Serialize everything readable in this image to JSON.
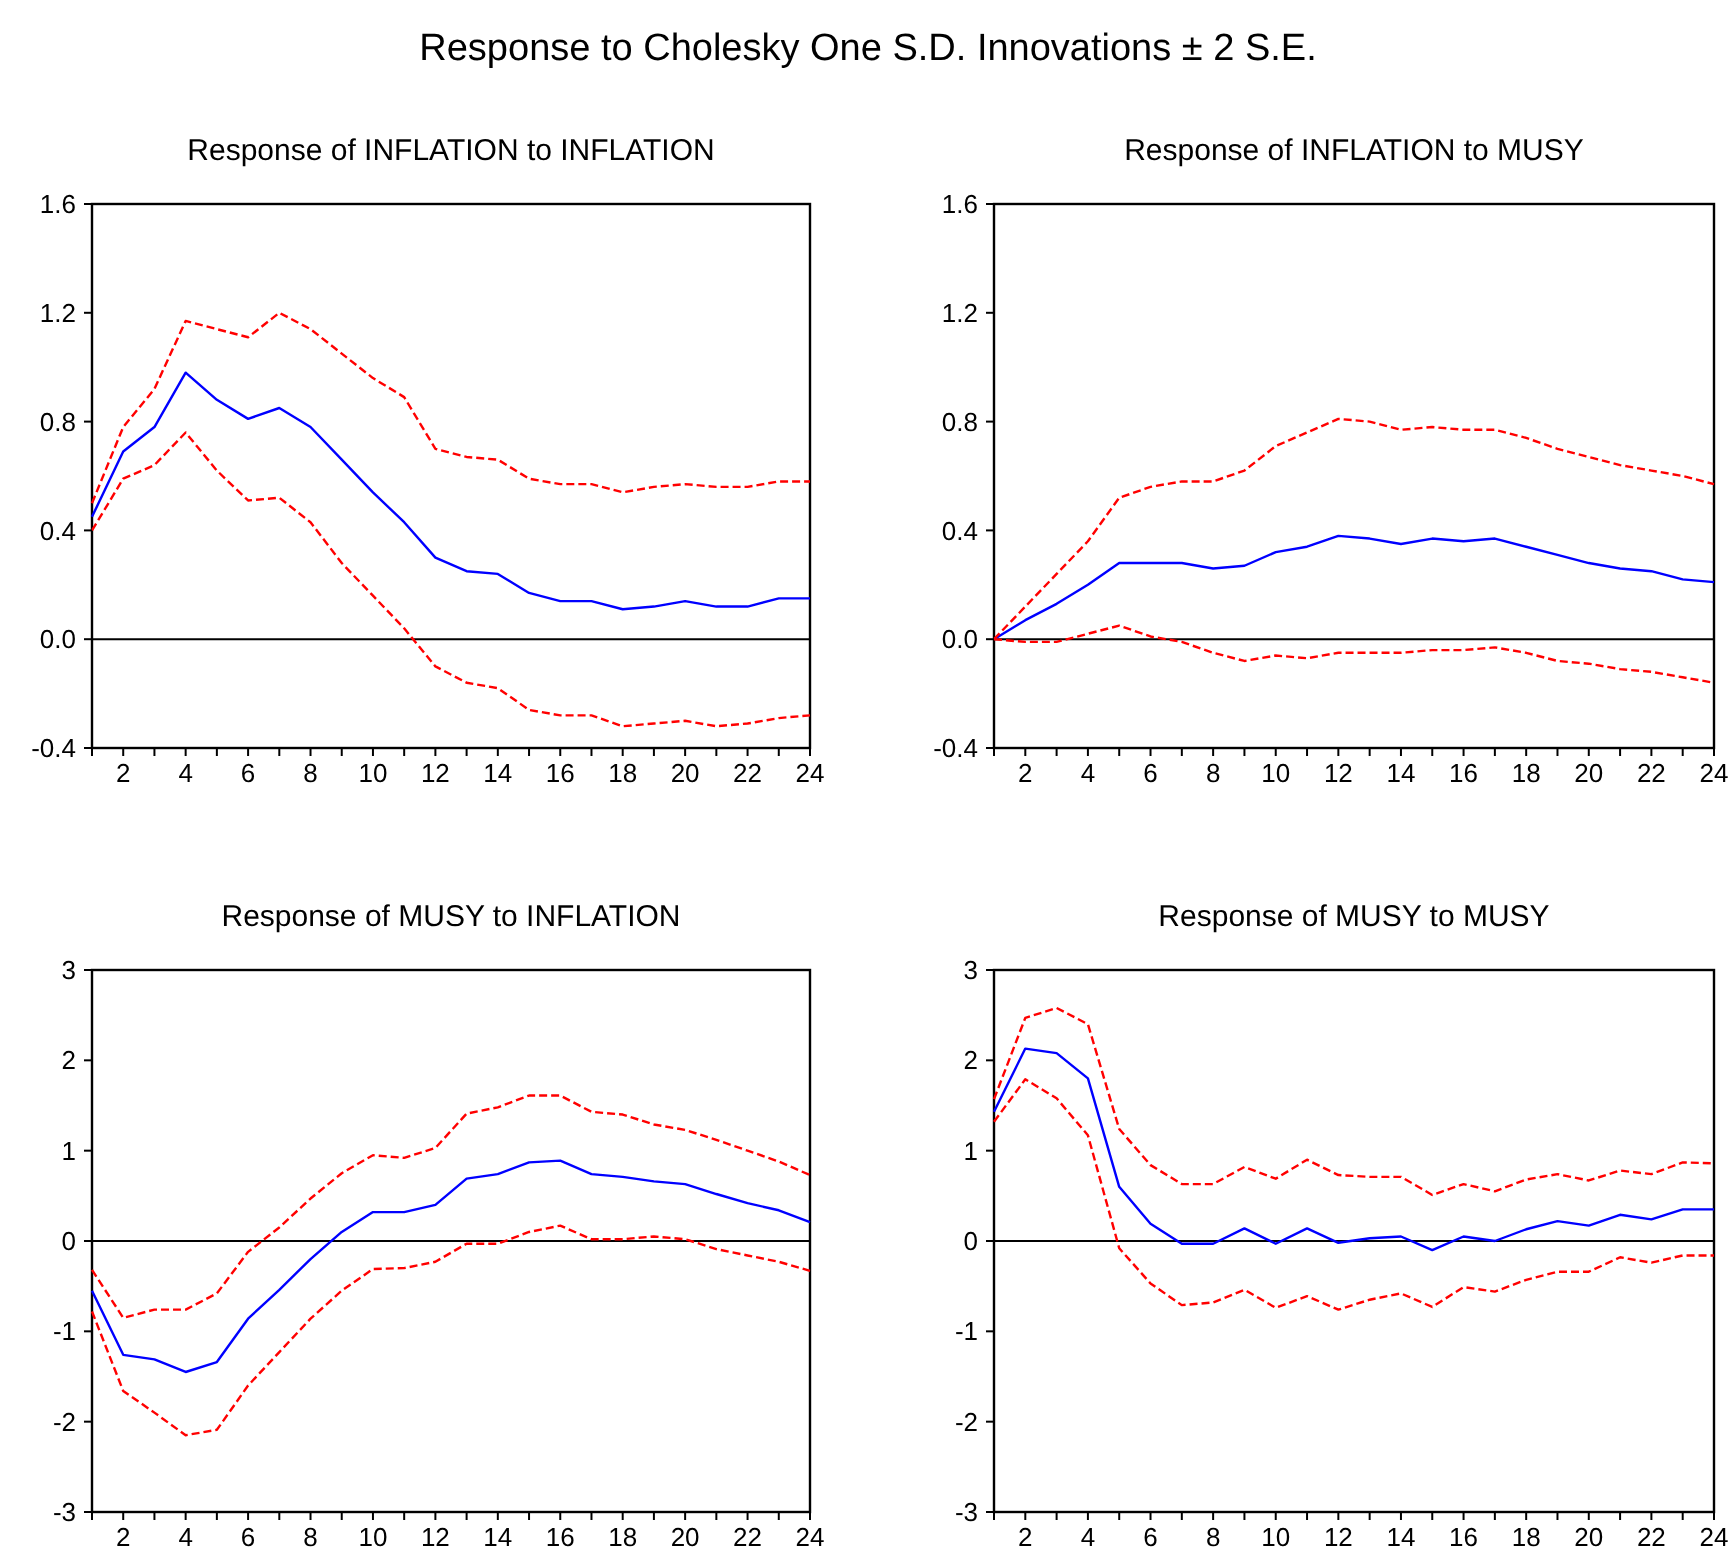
{
  "chart_data": [
    {
      "type": "line",
      "title": "Response of INFLATION to INFLATION",
      "annotations": [
        "Response to Cholesky One S.D. Innovations ± 2 S.E."
      ],
      "x": [
        1,
        2,
        3,
        4,
        5,
        6,
        7,
        8,
        9,
        10,
        11,
        12,
        13,
        14,
        15,
        16,
        17,
        18,
        19,
        20,
        21,
        22,
        23,
        24
      ],
      "xlim": [
        1,
        24
      ],
      "xticks": [
        {
          "value": 1,
          "label": null
        },
        2,
        {
          "value": 3,
          "label": null
        },
        4,
        {
          "value": 5,
          "label": null
        },
        6,
        {
          "value": 7,
          "label": null
        },
        8,
        {
          "value": 9,
          "label": null
        },
        10,
        {
          "value": 11,
          "label": null
        },
        12,
        {
          "value": 13,
          "label": null
        },
        14,
        {
          "value": 15,
          "label": null
        },
        16,
        {
          "value": 17,
          "label": null
        },
        18,
        {
          "value": 19,
          "label": null
        },
        20,
        {
          "value": 21,
          "label": null
        },
        22,
        {
          "value": 23,
          "label": null
        },
        24
      ],
      "ylim": [
        -0.4,
        1.6
      ],
      "yticks": [
        {
          "value": -0.4,
          "label": "-0.4"
        },
        {
          "value": 0,
          "label": "0.0"
        },
        {
          "value": 0.4,
          "label": "0.4"
        },
        {
          "value": 0.8,
          "label": "0.8"
        },
        {
          "value": 1.2,
          "label": "1.2"
        },
        {
          "value": 1.6,
          "label": "1.6"
        }
      ],
      "grid": false,
      "ref_lines": [
        {
          "axis": "y",
          "value": 0,
          "color": "#000000"
        }
      ],
      "series": [
        {
          "color": "#0000ff",
          "line_style": "solid",
          "values": [
            0.45,
            0.69,
            0.78,
            0.98,
            0.88,
            0.81,
            0.85,
            0.78,
            0.66,
            0.54,
            0.43,
            0.3,
            0.25,
            0.24,
            0.17,
            0.14,
            0.14,
            0.11,
            0.12,
            0.14,
            0.12,
            0.12,
            0.15,
            0.15
          ]
        },
        {
          "color": "#ff0000",
          "line_style": "dashed",
          "values": [
            0.5,
            0.78,
            0.92,
            1.17,
            1.14,
            1.11,
            1.2,
            1.14,
            1.05,
            0.96,
            0.89,
            0.7,
            0.67,
            0.66,
            0.59,
            0.57,
            0.57,
            0.54,
            0.56,
            0.57,
            0.56,
            0.56,
            0.58,
            0.58
          ]
        },
        {
          "color": "#ff0000",
          "line_style": "dashed",
          "values": [
            0.4,
            0.59,
            0.64,
            0.76,
            0.62,
            0.51,
            0.52,
            0.43,
            0.28,
            0.16,
            0.04,
            -0.1,
            -0.16,
            -0.18,
            -0.26,
            -0.28,
            -0.28,
            -0.32,
            -0.31,
            -0.3,
            -0.32,
            -0.31,
            -0.29,
            -0.28
          ]
        }
      ]
    },
    {
      "type": "line",
      "title": "Response of INFLATION to MUSY",
      "x": [
        1,
        2,
        3,
        4,
        5,
        6,
        7,
        8,
        9,
        10,
        11,
        12,
        13,
        14,
        15,
        16,
        17,
        18,
        19,
        20,
        21,
        22,
        23,
        24
      ],
      "xlim": [
        1,
        24
      ],
      "xticks": [
        {
          "value": 1,
          "label": null
        },
        2,
        {
          "value": 3,
          "label": null
        },
        4,
        {
          "value": 5,
          "label": null
        },
        6,
        {
          "value": 7,
          "label": null
        },
        8,
        {
          "value": 9,
          "label": null
        },
        10,
        {
          "value": 11,
          "label": null
        },
        12,
        {
          "value": 13,
          "label": null
        },
        14,
        {
          "value": 15,
          "label": null
        },
        16,
        {
          "value": 17,
          "label": null
        },
        18,
        {
          "value": 19,
          "label": null
        },
        20,
        {
          "value": 21,
          "label": null
        },
        22,
        {
          "value": 23,
          "label": null
        },
        24
      ],
      "ylim": [
        -0.4,
        1.6
      ],
      "yticks": [
        {
          "value": -0.4,
          "label": "-0.4"
        },
        {
          "value": 0,
          "label": "0.0"
        },
        {
          "value": 0.4,
          "label": "0.4"
        },
        {
          "value": 0.8,
          "label": "0.8"
        },
        {
          "value": 1.2,
          "label": "1.2"
        },
        {
          "value": 1.6,
          "label": "1.6"
        }
      ],
      "grid": false,
      "ref_lines": [
        {
          "axis": "y",
          "value": 0,
          "color": "#000000"
        }
      ],
      "series": [
        {
          "color": "#0000ff",
          "line_style": "solid",
          "values": [
            0,
            0.07,
            0.13,
            0.2,
            0.28,
            0.28,
            0.28,
            0.26,
            0.27,
            0.32,
            0.34,
            0.38,
            0.37,
            0.35,
            0.37,
            0.36,
            0.37,
            0.34,
            0.31,
            0.28,
            0.26,
            0.25,
            0.22,
            0.21
          ]
        },
        {
          "color": "#ff0000",
          "line_style": "dashed",
          "values": [
            0,
            0.12,
            0.24,
            0.36,
            0.52,
            0.56,
            0.58,
            0.58,
            0.62,
            0.71,
            0.76,
            0.81,
            0.8,
            0.77,
            0.78,
            0.77,
            0.77,
            0.74,
            0.7,
            0.67,
            0.64,
            0.62,
            0.6,
            0.57
          ]
        },
        {
          "color": "#ff0000",
          "line_style": "dashed",
          "values": [
            0,
            -0.01,
            -0.01,
            0.02,
            0.05,
            0.01,
            -0.01,
            -0.05,
            -0.08,
            -0.06,
            -0.07,
            -0.05,
            -0.05,
            -0.05,
            -0.04,
            -0.04,
            -0.03,
            -0.05,
            -0.08,
            -0.09,
            -0.11,
            -0.12,
            -0.14,
            -0.16
          ]
        }
      ]
    },
    {
      "type": "line",
      "title": "Response of MUSY to INFLATION",
      "x": [
        1,
        2,
        3,
        4,
        5,
        6,
        7,
        8,
        9,
        10,
        11,
        12,
        13,
        14,
        15,
        16,
        17,
        18,
        19,
        20,
        21,
        22,
        23,
        24
      ],
      "xlim": [
        1,
        24
      ],
      "xticks": [
        {
          "value": 1,
          "label": null
        },
        2,
        {
          "value": 3,
          "label": null
        },
        4,
        {
          "value": 5,
          "label": null
        },
        6,
        {
          "value": 7,
          "label": null
        },
        8,
        {
          "value": 9,
          "label": null
        },
        10,
        {
          "value": 11,
          "label": null
        },
        12,
        {
          "value": 13,
          "label": null
        },
        14,
        {
          "value": 15,
          "label": null
        },
        16,
        {
          "value": 17,
          "label": null
        },
        18,
        {
          "value": 19,
          "label": null
        },
        20,
        {
          "value": 21,
          "label": null
        },
        22,
        {
          "value": 23,
          "label": null
        },
        24
      ],
      "ylim": [
        -3,
        3
      ],
      "yticks": [
        -3,
        -2,
        -1,
        0,
        1,
        2,
        3
      ],
      "grid": false,
      "ref_lines": [
        {
          "axis": "y",
          "value": 0,
          "color": "#000000"
        }
      ],
      "series": [
        {
          "color": "#0000ff",
          "line_style": "solid",
          "values": [
            -0.55,
            -1.26,
            -1.31,
            -1.45,
            -1.34,
            -0.86,
            -0.54,
            -0.2,
            0.1,
            0.32,
            0.32,
            0.4,
            0.69,
            0.74,
            0.87,
            0.89,
            0.74,
            0.71,
            0.66,
            0.63,
            0.52,
            0.42,
            0.34,
            0.21
          ]
        },
        {
          "color": "#ff0000",
          "line_style": "dashed",
          "values": [
            -0.32,
            -0.85,
            -0.76,
            -0.76,
            -0.58,
            -0.12,
            0.15,
            0.47,
            0.75,
            0.95,
            0.92,
            1.03,
            1.41,
            1.48,
            1.61,
            1.61,
            1.43,
            1.4,
            1.29,
            1.23,
            1.12,
            1.0,
            0.88,
            0.73
          ]
        },
        {
          "color": "#ff0000",
          "line_style": "dashed",
          "values": [
            -0.78,
            -1.66,
            -1.9,
            -2.15,
            -2.09,
            -1.6,
            -1.23,
            -0.86,
            -0.55,
            -0.31,
            -0.3,
            -0.23,
            -0.03,
            -0.03,
            0.1,
            0.17,
            0.02,
            0.02,
            0.05,
            0.02,
            -0.09,
            -0.16,
            -0.23,
            -0.33
          ]
        }
      ]
    },
    {
      "type": "line",
      "title": "Response of MUSY to MUSY",
      "x": [
        1,
        2,
        3,
        4,
        5,
        6,
        7,
        8,
        9,
        10,
        11,
        12,
        13,
        14,
        15,
        16,
        17,
        18,
        19,
        20,
        21,
        22,
        23,
        24
      ],
      "xlim": [
        1,
        24
      ],
      "xticks": [
        {
          "value": 1,
          "label": null
        },
        2,
        {
          "value": 3,
          "label": null
        },
        4,
        {
          "value": 5,
          "label": null
        },
        6,
        {
          "value": 7,
          "label": null
        },
        8,
        {
          "value": 9,
          "label": null
        },
        10,
        {
          "value": 11,
          "label": null
        },
        12,
        {
          "value": 13,
          "label": null
        },
        14,
        {
          "value": 15,
          "label": null
        },
        16,
        {
          "value": 17,
          "label": null
        },
        18,
        {
          "value": 19,
          "label": null
        },
        20,
        {
          "value": 21,
          "label": null
        },
        22,
        {
          "value": 23,
          "label": null
        },
        24
      ],
      "ylim": [
        -3,
        3
      ],
      "yticks": [
        -3,
        -2,
        -1,
        0,
        1,
        2,
        3
      ],
      "grid": false,
      "ref_lines": [
        {
          "axis": "y",
          "value": 0,
          "color": "#000000"
        }
      ],
      "series": [
        {
          "color": "#0000ff",
          "line_style": "solid",
          "values": [
            1.43,
            2.13,
            2.08,
            1.8,
            0.6,
            0.19,
            -0.03,
            -0.03,
            0.14,
            -0.03,
            0.14,
            -0.02,
            0.03,
            0.05,
            -0.1,
            0.05,
            0.0,
            0.13,
            0.22,
            0.17,
            0.29,
            0.24,
            0.35,
            0.35
          ]
        },
        {
          "color": "#ff0000",
          "line_style": "dashed",
          "values": [
            1.57,
            2.47,
            2.58,
            2.4,
            1.24,
            0.84,
            0.63,
            0.63,
            0.82,
            0.69,
            0.9,
            0.73,
            0.71,
            0.71,
            0.51,
            0.63,
            0.55,
            0.68,
            0.74,
            0.67,
            0.78,
            0.74,
            0.87,
            0.86
          ]
        },
        {
          "color": "#ff0000",
          "line_style": "dashed",
          "values": [
            1.32,
            1.79,
            1.58,
            1.17,
            -0.08,
            -0.47,
            -0.71,
            -0.68,
            -0.54,
            -0.74,
            -0.61,
            -0.76,
            -0.65,
            -0.58,
            -0.73,
            -0.51,
            -0.56,
            -0.43,
            -0.34,
            -0.34,
            -0.18,
            -0.24,
            -0.16,
            -0.16
          ]
        }
      ]
    }
  ]
}
